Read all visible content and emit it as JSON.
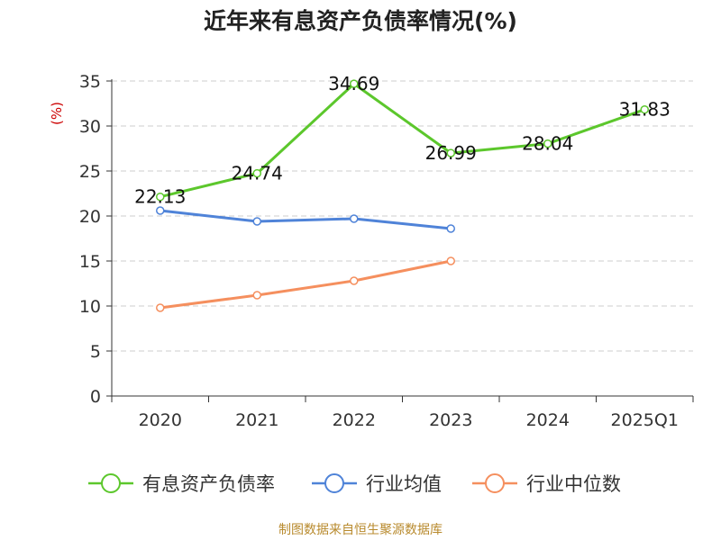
{
  "chart_data": {
    "type": "line",
    "title": "近年来有息资产负债率情况(%)",
    "ylabel": "(%)",
    "xlabel": "",
    "categories": [
      "2020",
      "2021",
      "2022",
      "2023",
      "2024",
      "2025Q1"
    ],
    "ylim": [
      0,
      35
    ],
    "yticks": [
      0,
      5,
      10,
      15,
      20,
      25,
      30,
      35
    ],
    "grid": true,
    "legend_position": "bottom",
    "series": [
      {
        "name": "有息资产负债率",
        "color": "#5cc72c",
        "values": [
          22.13,
          24.74,
          34.69,
          26.99,
          28.04,
          31.83
        ],
        "labels": [
          "22.13",
          "24.74",
          "34.69",
          "26.99",
          "28.04",
          "31.83"
        ]
      },
      {
        "name": "行业均值",
        "color": "#4f83d8",
        "values": [
          20.6,
          19.4,
          19.7,
          18.6,
          null,
          null
        ]
      },
      {
        "name": "行业中位数",
        "color": "#f58f5e",
        "values": [
          9.8,
          11.2,
          12.8,
          15.0,
          null,
          null
        ]
      }
    ]
  },
  "source_note": "制图数据来自恒生聚源数据库"
}
